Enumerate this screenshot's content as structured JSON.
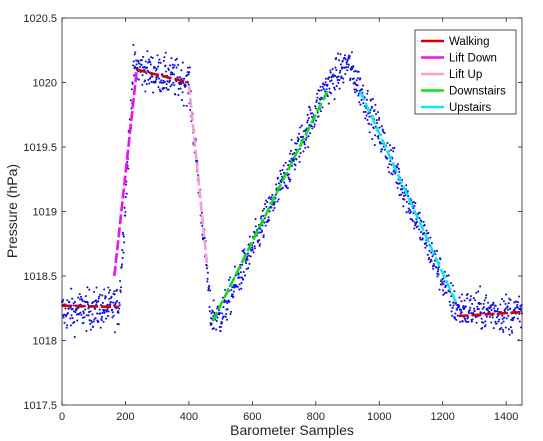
{
  "chart_data": {
    "type": "scatter",
    "xlabel": "Barometer Samples",
    "ylabel": "Pressure (hPa)",
    "xlim": [
      0,
      1450
    ],
    "ylim": [
      1017.5,
      1020.5
    ],
    "x_ticks": [
      0,
      200,
      400,
      600,
      800,
      1000,
      1200,
      1400
    ],
    "y_ticks": [
      "1017.5",
      "1018",
      "1018.5",
      "1019",
      "1019.5",
      "1020",
      "1020.5"
    ],
    "y_tick_values": [
      1017.5,
      1018,
      1018.5,
      1019,
      1019.5,
      1020,
      1020.5
    ],
    "grid": false,
    "legend_position": "top-right",
    "scatter_color": "#1010e0",
    "scatter_profile": [
      {
        "x": 0,
        "y": 1018.22,
        "noise": 0.11
      },
      {
        "x": 180,
        "y": 1018.26,
        "noise": 0.11
      },
      {
        "x": 225,
        "y": 1020.12,
        "noise": 0.1
      },
      {
        "x": 400,
        "y": 1020.0,
        "noise": 0.11
      },
      {
        "x": 455,
        "y": 1018.6,
        "noise": 0.08
      },
      {
        "x": 468,
        "y": 1018.2,
        "noise": 0.1
      },
      {
        "x": 500,
        "y": 1018.18,
        "noise": 0.1
      },
      {
        "x": 830,
        "y": 1019.95,
        "noise": 0.1
      },
      {
        "x": 900,
        "y": 1020.15,
        "noise": 0.1
      },
      {
        "x": 940,
        "y": 1019.95,
        "noise": 0.1
      },
      {
        "x": 1240,
        "y": 1018.25,
        "noise": 0.1
      },
      {
        "x": 1450,
        "y": 1018.2,
        "noise": 0.11
      }
    ],
    "series": [
      {
        "name": "Walking",
        "color": "#d40000",
        "segments": [
          [
            [
              0,
              1018.27
            ],
            [
              180,
              1018.26
            ]
          ],
          [
            [
              235,
              1020.1
            ],
            [
              400,
              1020.0
            ]
          ],
          [
            [
              1250,
              1018.19
            ],
            [
              1450,
              1018.22
            ]
          ]
        ]
      },
      {
        "name": "Lift Down",
        "color": "#ee10ee",
        "segments": [
          [
            [
              165,
              1018.5
            ],
            [
              235,
              1020.08
            ]
          ]
        ]
      },
      {
        "name": "Lift Up",
        "color": "#f5a0cc",
        "segments": [
          [
            [
              400,
              1019.98
            ],
            [
              458,
              1018.57
            ]
          ]
        ]
      },
      {
        "name": "Downstairs",
        "color": "#10e010",
        "segments": [
          [
            [
              475,
              1018.15
            ],
            [
              840,
              1019.95
            ]
          ]
        ]
      },
      {
        "name": "Upstairs",
        "color": "#10e8ee",
        "segments": [
          [
            [
              940,
              1019.93
            ],
            [
              1245,
              1018.28
            ]
          ]
        ]
      }
    ]
  }
}
